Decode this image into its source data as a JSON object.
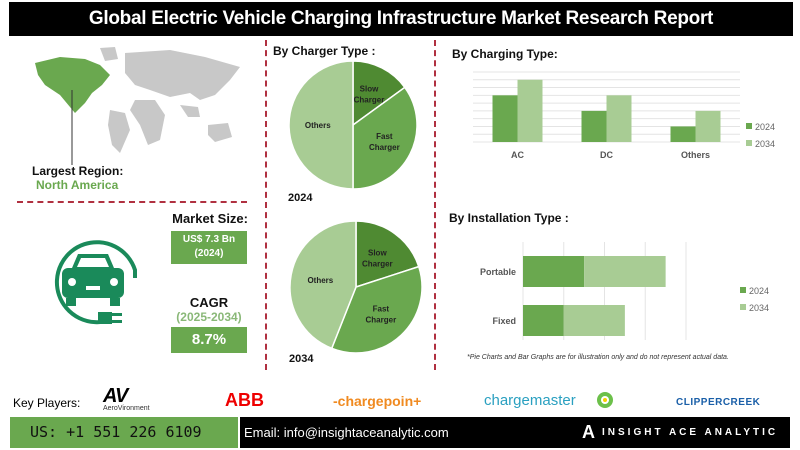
{
  "title": "Global Electric Vehicle Charging Infrastructure Market Research Report",
  "region": {
    "label": "Largest Region:",
    "value": "North America"
  },
  "market_size": {
    "label": "Market Size:",
    "value": "US$ 7.3 Bn",
    "year": "(2024)"
  },
  "cagr": {
    "label": "CAGR",
    "period": "(2025-2034)",
    "value": "8.7%"
  },
  "colors": {
    "dark_green": "#4f8a32",
    "mid_green": "#6aa84f",
    "light_green": "#a8cc94",
    "teal_icon": "#1a8a5a",
    "divider": "#b03040"
  },
  "chart_data": [
    {
      "type": "pie",
      "title": "By Charger Type :",
      "label": "2024",
      "slices": [
        {
          "name": "Slow Charger",
          "value": 15
        },
        {
          "name": "Fast Charger",
          "value": 35
        },
        {
          "name": "Others",
          "value": 50
        }
      ]
    },
    {
      "type": "pie",
      "label": "2034",
      "slices": [
        {
          "name": "Slow Charger",
          "value": 20
        },
        {
          "name": "Fast Charger",
          "value": 36
        },
        {
          "name": "Others",
          "value": 44
        }
      ]
    },
    {
      "type": "bar",
      "title": "By Charging Type:",
      "categories": [
        "AC",
        "DC",
        "Others"
      ],
      "series": [
        {
          "name": "2024",
          "values": [
            6,
            4,
            2
          ]
        },
        {
          "name": "2034",
          "values": [
            8,
            6,
            4
          ]
        }
      ],
      "ylim": [
        0,
        9
      ],
      "grid": true,
      "legend": "right"
    },
    {
      "type": "bar",
      "orientation": "horizontal",
      "stacked": true,
      "title": "By Installation Type :",
      "categories": [
        "Portable",
        "Fixed"
      ],
      "series": [
        {
          "name": "2024",
          "values": [
            1.5,
            1
          ]
        },
        {
          "name": "2034",
          "values": [
            2,
            1.5
          ]
        }
      ],
      "xlim": [
        0,
        4
      ],
      "grid": true,
      "legend": "right"
    }
  ],
  "note": "*Pie Charts and Bar Graphs are for illustration only and do not represent actual data.",
  "key_players": {
    "label": "Key Players:",
    "logos": [
      "AV AeroVironment",
      "ABB",
      "chargepoint",
      "bp chargemaster",
      "ClipperCreek"
    ]
  },
  "footer": {
    "phone": "US: +1 551 226 6109",
    "email": "Email: info@insightaceanalytic.com",
    "brand": "INSIGHT ACE ANALYTIC"
  }
}
